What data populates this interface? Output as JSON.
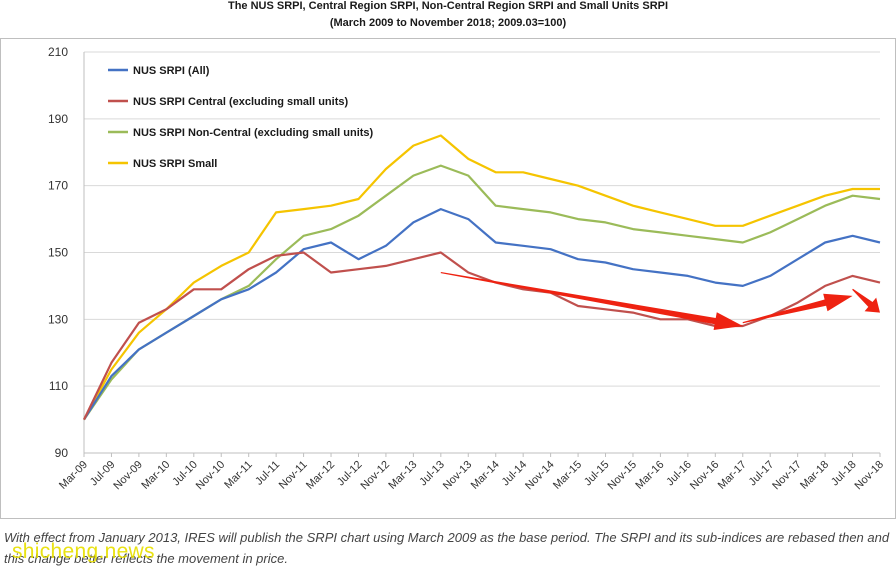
{
  "chart_data": {
    "type": "line",
    "title": "The NUS SRPI, Central Region SRPI,  Non-Central Region SRPI  and  Small Units SRPI",
    "subtitle": "(March 2009 to November 2018; 2009.03=100)",
    "xlabel": "",
    "ylabel": "",
    "ylim": [
      90,
      210
    ],
    "yticks": [
      90,
      110,
      130,
      150,
      170,
      190,
      210
    ],
    "grid": "horizontal",
    "legend_position": "top-left",
    "xtick_labels": [
      "Mar-09",
      "Jul-09",
      "Nov-09",
      "Mar-10",
      "Jul-10",
      "Nov-10",
      "Mar-11",
      "Jul-11",
      "Nov-11",
      "Mar-12",
      "Jul-12",
      "Nov-12",
      "Mar-13",
      "Jul-13",
      "Nov-13",
      "Mar-14",
      "Jul-14",
      "Nov-14",
      "Mar-15",
      "Jul-15",
      "Nov-15",
      "Mar-16",
      "Jul-16",
      "Nov-16",
      "Mar-17",
      "Jul-17",
      "Nov-17",
      "Mar-18",
      "Jul-18",
      "Nov-18"
    ],
    "series": [
      {
        "name": "NUS SRPI (All)",
        "color": "#4472c4",
        "values": [
          100,
          113,
          121,
          126,
          131,
          136,
          139,
          144,
          151,
          153,
          148,
          152,
          159,
          163,
          160,
          153,
          152,
          151,
          148,
          147,
          145,
          144,
          143,
          141,
          140,
          143,
          148,
          153,
          155,
          153
        ]
      },
      {
        "name": "NUS SRPI Central (excluding small units)",
        "color": "#c0504d",
        "values": [
          100,
          117,
          129,
          133,
          139,
          139,
          145,
          149,
          150,
          144,
          145,
          146,
          148,
          150,
          144,
          141,
          139,
          138,
          134,
          133,
          132,
          130,
          130,
          128,
          128,
          131,
          135,
          140,
          143,
          141
        ]
      },
      {
        "name": "NUS SRPI Non-Central (excluding small units)",
        "color": "#9bbb59",
        "values": [
          100,
          112,
          121,
          126,
          131,
          136,
          140,
          148,
          155,
          157,
          161,
          167,
          173,
          176,
          173,
          164,
          163,
          162,
          160,
          159,
          157,
          156,
          155,
          154,
          153,
          156,
          160,
          164,
          167,
          166
        ]
      },
      {
        "name": "NUS SRPI Small",
        "color": "#f5c400",
        "values": [
          100,
          115,
          126,
          133,
          141,
          146,
          150,
          162,
          163,
          164,
          166,
          175,
          182,
          185,
          178,
          174,
          174,
          172,
          170,
          167,
          164,
          162,
          160,
          158,
          158,
          161,
          164,
          167,
          169,
          169
        ]
      }
    ],
    "annotations": [
      {
        "type": "arrow",
        "color": "#ee2211",
        "from": {
          "x": "Jul-13",
          "y": 144
        },
        "to": {
          "x": "Mar-17",
          "y": 128
        }
      },
      {
        "type": "arrow",
        "color": "#ee2211",
        "from": {
          "x": "Mar-17",
          "y": 129
        },
        "to": {
          "x": "Jul-18",
          "y": 137
        }
      },
      {
        "type": "arrow",
        "color": "#ee2211",
        "from": {
          "x": "Jul-18",
          "y": 139
        },
        "to": {
          "x": "Nov-18",
          "y": 132
        }
      }
    ]
  },
  "caption": "With effect from January 2013, IRES will publish the SRPI chart using March 2009 as the base period. The SRPI and its sub-indices are rebased then and this change better reflects the movement in price.",
  "watermark": "shicheng.news"
}
